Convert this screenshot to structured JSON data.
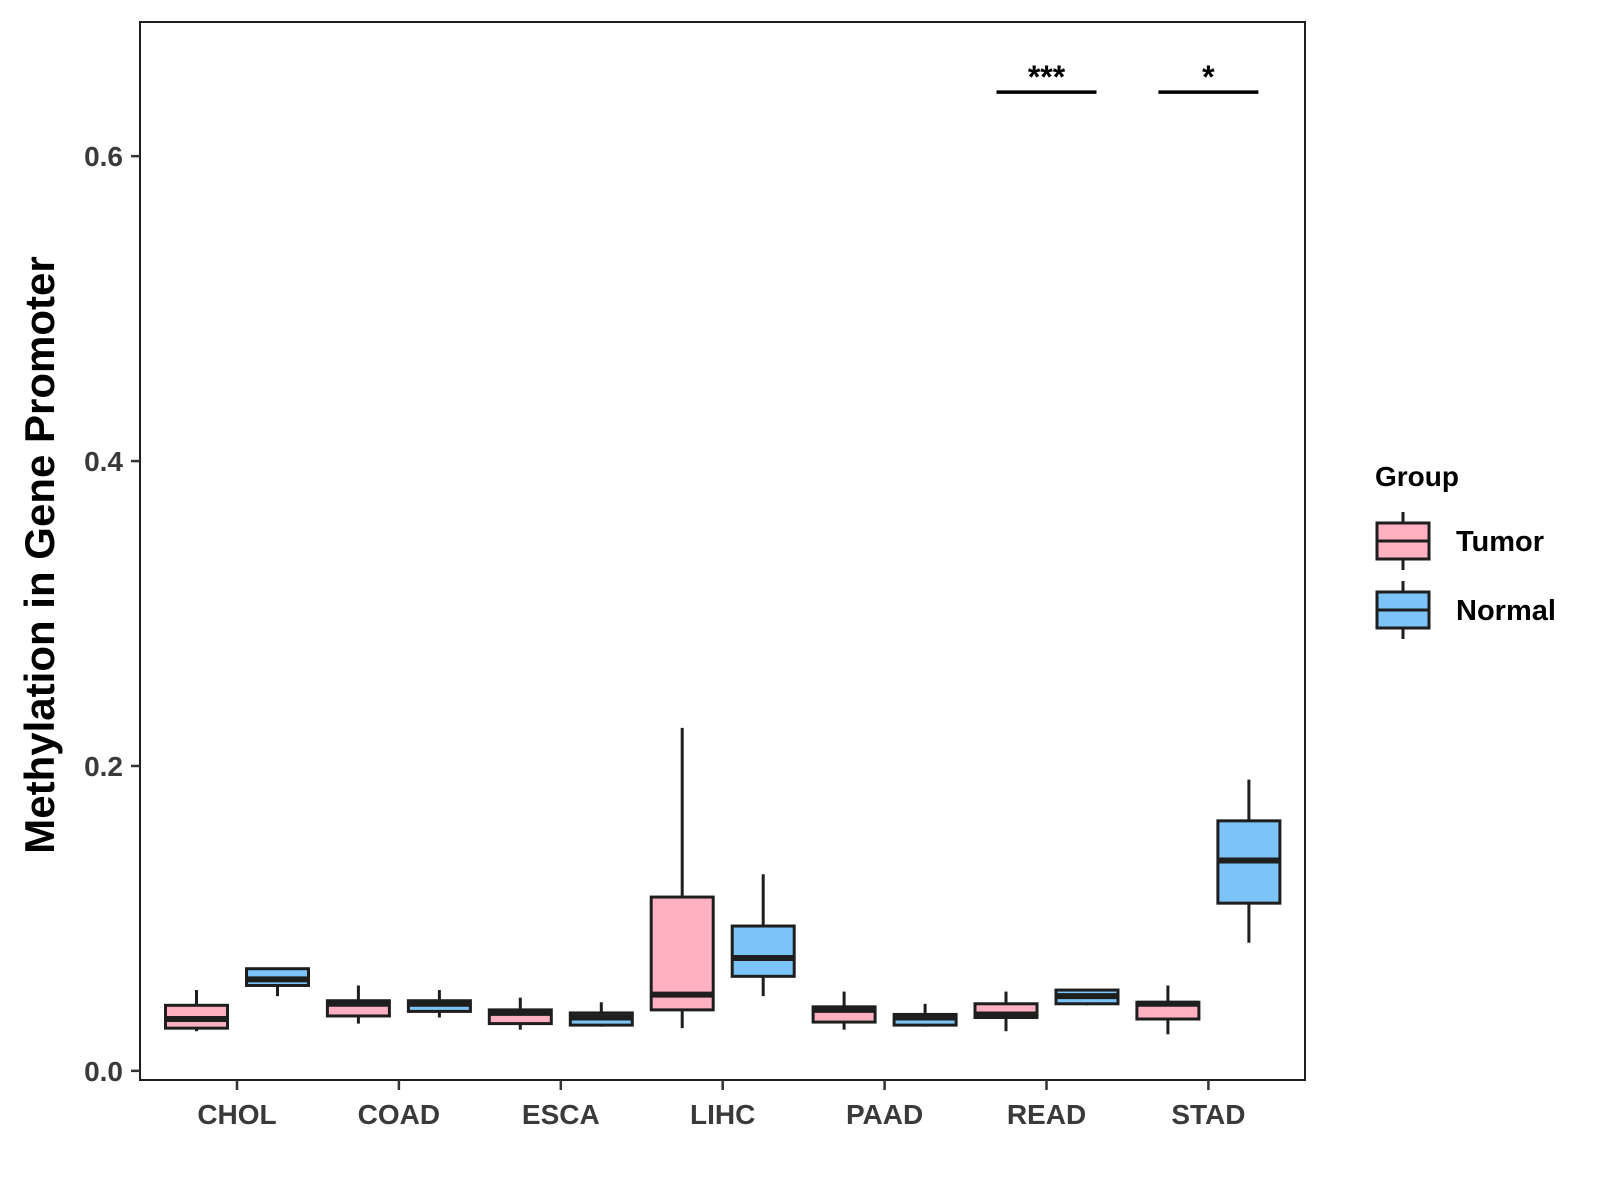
{
  "chart_data": {
    "type": "boxplot",
    "title": "",
    "xlabel": "",
    "ylabel": "Methylation in Gene Promoter",
    "ylim": [
      -0.006,
      0.688
    ],
    "yticks": [
      "0.0",
      "0.2",
      "0.4",
      "0.6"
    ],
    "ytick_values": [
      0.0,
      0.2,
      0.4,
      0.6
    ],
    "categories": [
      "CHOL",
      "COAD",
      "ESCA",
      "LIHC",
      "PAAD",
      "READ",
      "STAD"
    ],
    "legend": {
      "title": "Group",
      "position": "right"
    },
    "series": [
      {
        "name": "Tumor",
        "color": "#FFB0C1",
        "boxes": [
          {
            "min": 0.026,
            "q1": 0.028,
            "median": 0.034,
            "q3": 0.043,
            "max": 0.053
          },
          {
            "min": 0.031,
            "q1": 0.036,
            "median": 0.044,
            "q3": 0.046,
            "max": 0.056
          },
          {
            "min": 0.027,
            "q1": 0.031,
            "median": 0.038,
            "q3": 0.04,
            "max": 0.048
          },
          {
            "min": 0.028,
            "q1": 0.04,
            "median": 0.05,
            "q3": 0.114,
            "max": 0.225
          },
          {
            "min": 0.027,
            "q1": 0.032,
            "median": 0.04,
            "q3": 0.042,
            "max": 0.052
          },
          {
            "min": 0.026,
            "q1": 0.035,
            "median": 0.037,
            "q3": 0.044,
            "max": 0.052
          },
          {
            "min": 0.024,
            "q1": 0.034,
            "median": 0.044,
            "q3": 0.045,
            "max": 0.056
          }
        ]
      },
      {
        "name": "Normal",
        "color": "#7CC3F7",
        "boxes": [
          {
            "min": 0.049,
            "q1": 0.056,
            "median": 0.06,
            "q3": 0.067,
            "max": 0.067
          },
          {
            "min": 0.035,
            "q1": 0.039,
            "median": 0.044,
            "q3": 0.046,
            "max": 0.053
          },
          {
            "min": 0.029,
            "q1": 0.03,
            "median": 0.035,
            "q3": 0.038,
            "max": 0.045
          },
          {
            "min": 0.049,
            "q1": 0.062,
            "median": 0.074,
            "q3": 0.095,
            "max": 0.129
          },
          {
            "min": 0.029,
            "q1": 0.03,
            "median": 0.035,
            "q3": 0.037,
            "max": 0.044
          },
          {
            "min": 0.043,
            "q1": 0.044,
            "median": 0.049,
            "q3": 0.053,
            "max": 0.053
          },
          {
            "min": 0.084,
            "q1": 0.11,
            "median": 0.138,
            "q3": 0.164,
            "max": 0.191
          }
        ]
      }
    ],
    "annotations": [
      {
        "category": "READ",
        "label": "***",
        "y": 0.642
      },
      {
        "category": "STAD",
        "label": "*",
        "y": 0.642
      }
    ]
  }
}
